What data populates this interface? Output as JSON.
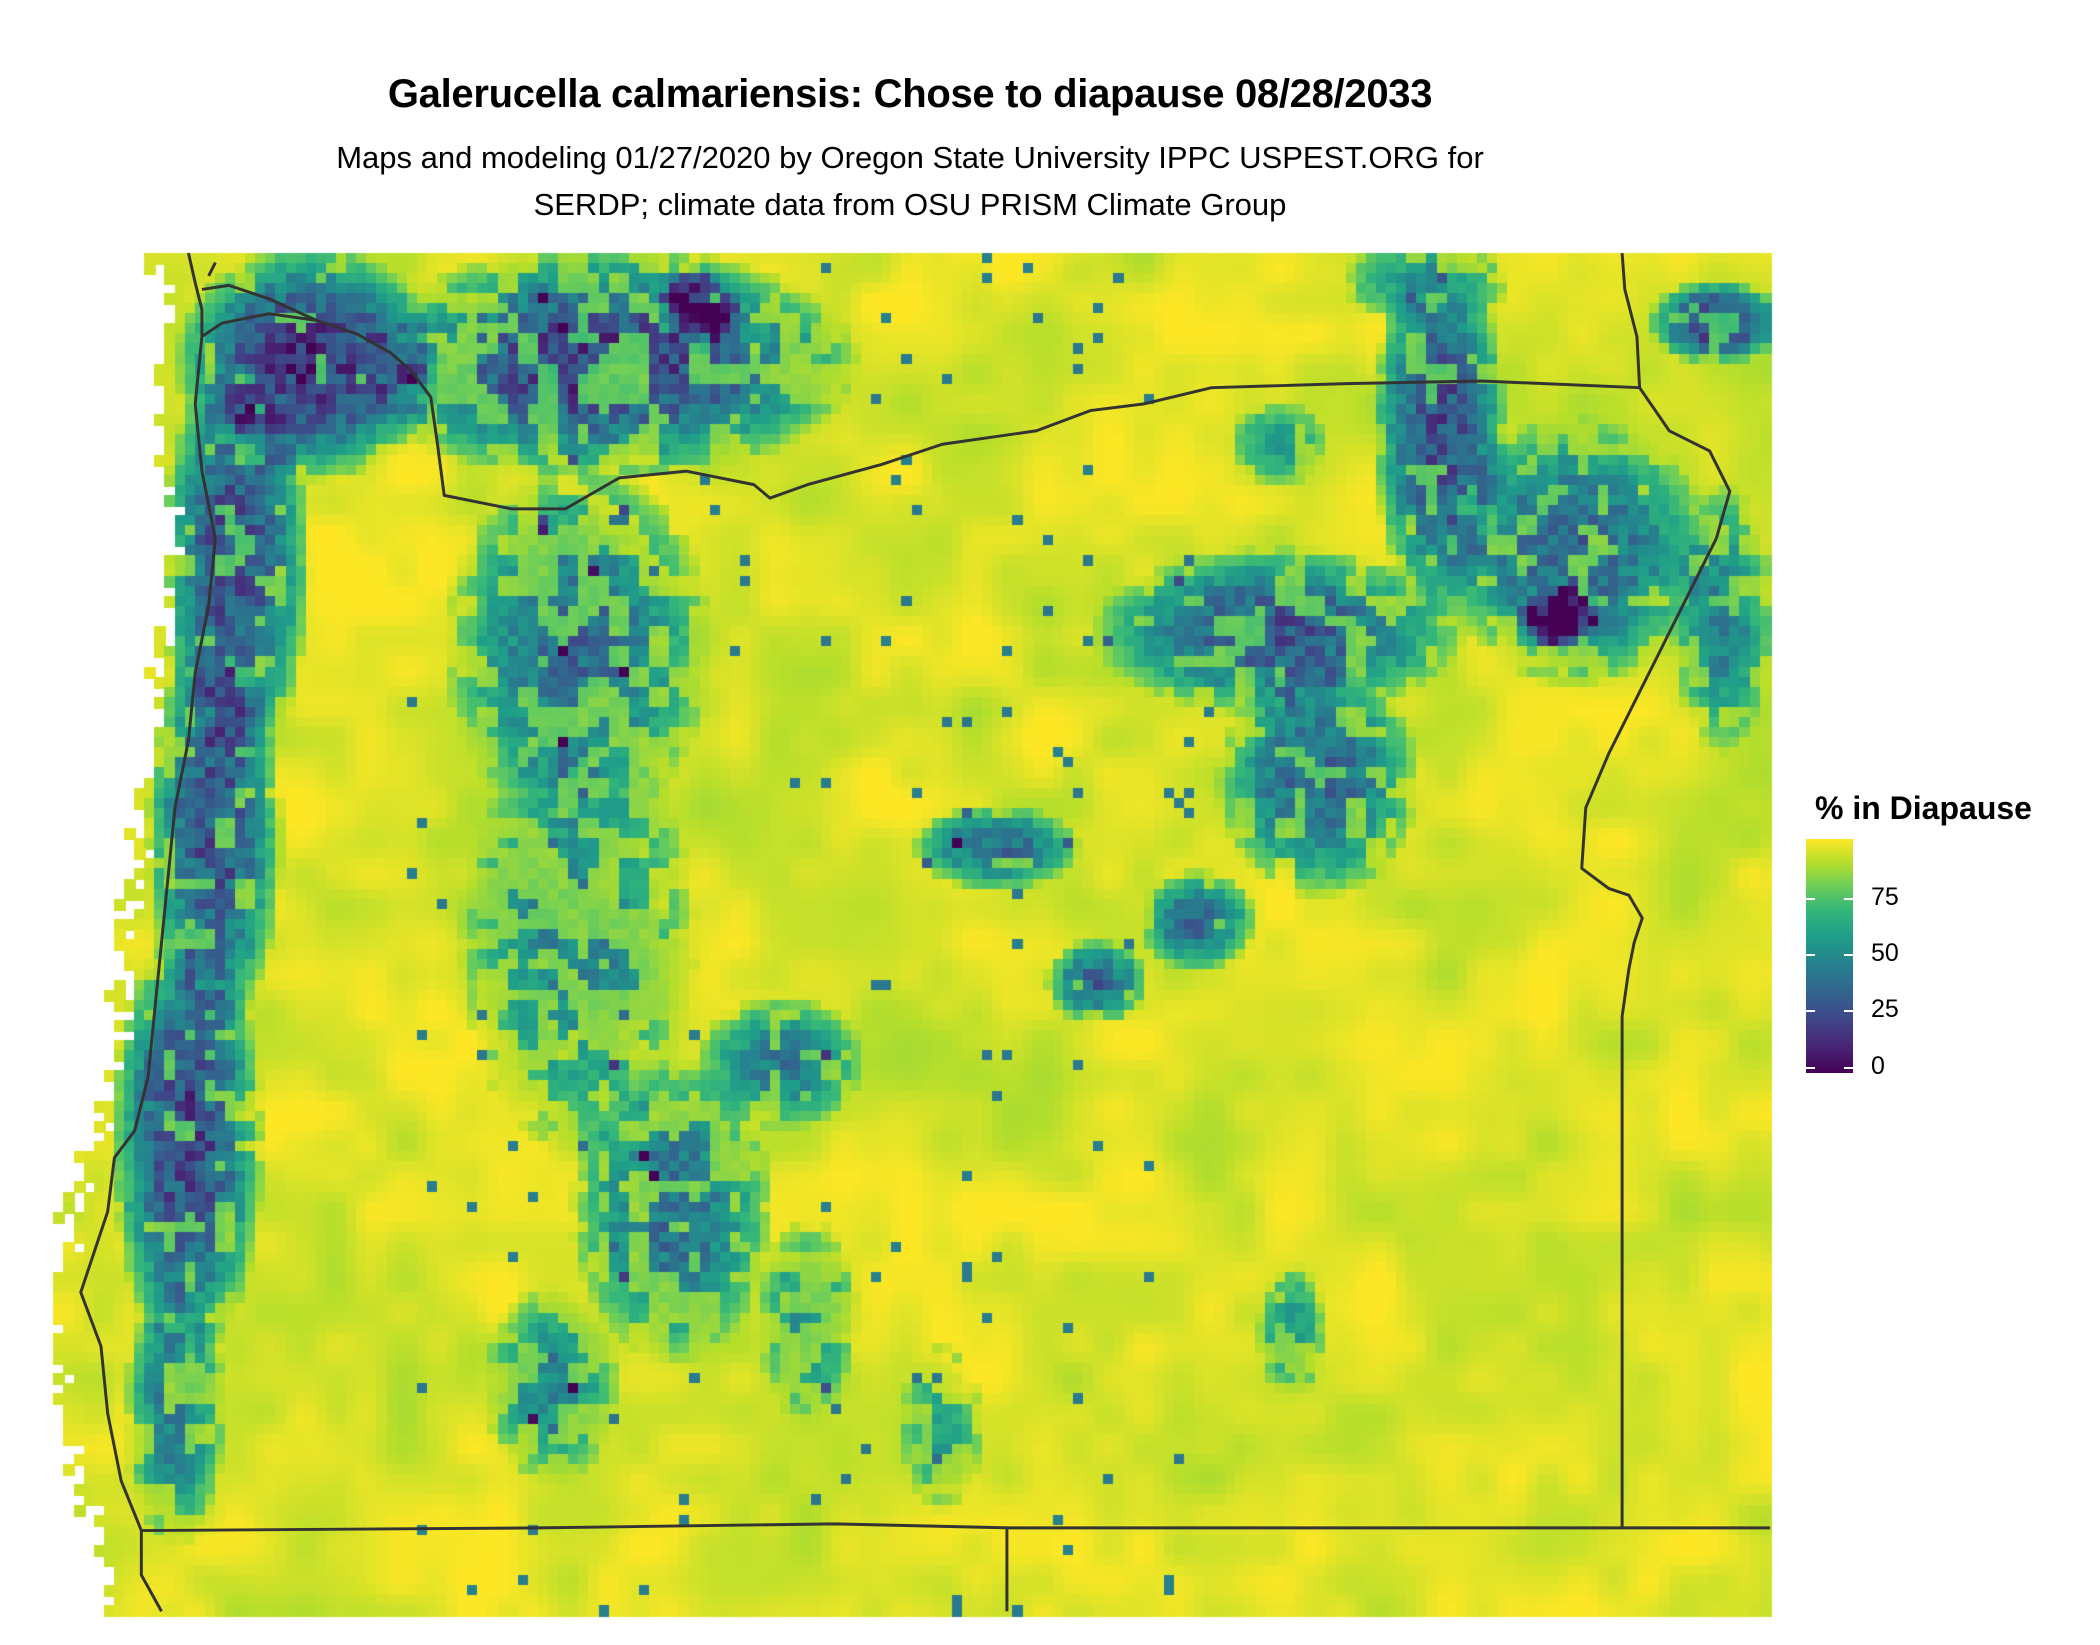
{
  "title": "Galerucella calmariensis: Chose to diapause 08/28/2033",
  "subtitle_line1": "Maps and modeling 01/27/2020 by Oregon State University IPPC USPEST.ORG for",
  "subtitle_line2": "SERDP; climate data from OSU PRISM Climate Group",
  "legend": {
    "title": "% in Diapause",
    "ticks": [
      "75",
      "50",
      "25",
      "0"
    ],
    "tick_values": [
      75,
      50,
      25,
      0
    ],
    "range": [
      0,
      100
    ],
    "palette": "viridis",
    "colors": [
      "#440154",
      "#3e4989",
      "#26828e",
      "#35b779",
      "#fde725"
    ]
  },
  "map": {
    "region": "Oregon and surrounding states",
    "dominant_value": "high (~95-100%) across most of the state",
    "boundary_color": "#333333"
  }
}
